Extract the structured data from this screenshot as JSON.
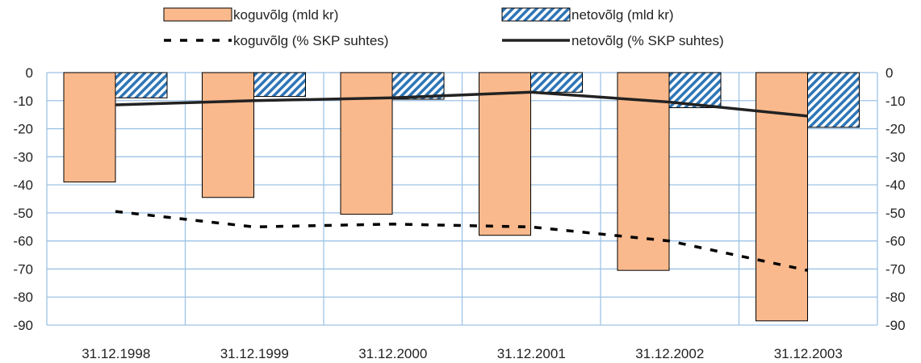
{
  "chart_data": {
    "type": "bar",
    "categories": [
      "31.12.1998",
      "31.12.1999",
      "31.12.2000",
      "31.12.2001",
      "31.12.2002",
      "31.12.2003"
    ],
    "series": [
      {
        "name": "koguvõlg (mld kr)",
        "kind": "bar",
        "fill": "#FAB98C",
        "values": [
          -39,
          -44.5,
          -50.5,
          -58,
          -70.5,
          -88.5
        ]
      },
      {
        "name": "netovõlg (mld kr)",
        "kind": "bar",
        "pattern": "diagonal-hatch",
        "color": "#2E75B6",
        "values": [
          -9,
          -8.5,
          -9.5,
          -7,
          -12.5,
          -19.5
        ]
      },
      {
        "name": "koguvõlg (% SKP suhtes)",
        "kind": "line",
        "style": "dashed",
        "color": "#000000",
        "values": [
          -49.5,
          -55,
          -54,
          -55,
          -60,
          -70.5
        ]
      },
      {
        "name": "netovõlg (% SKP suhtes)",
        "kind": "line",
        "style": "solid",
        "color": "#222222",
        "values": [
          -11.5,
          -10,
          -9,
          -7,
          -10.5,
          -15.5
        ]
      }
    ],
    "ylim": [
      -90,
      0
    ],
    "y_ticks": [
      0,
      -10,
      -20,
      -30,
      -40,
      -50,
      -60,
      -70,
      -80,
      -90
    ],
    "secondary_y_ticks": [
      0,
      -10,
      -20,
      -30,
      -40,
      -50,
      -60,
      -70,
      -80,
      -90
    ],
    "grid": true,
    "grid_color": "#9DC3E6",
    "legend_position": "top"
  }
}
